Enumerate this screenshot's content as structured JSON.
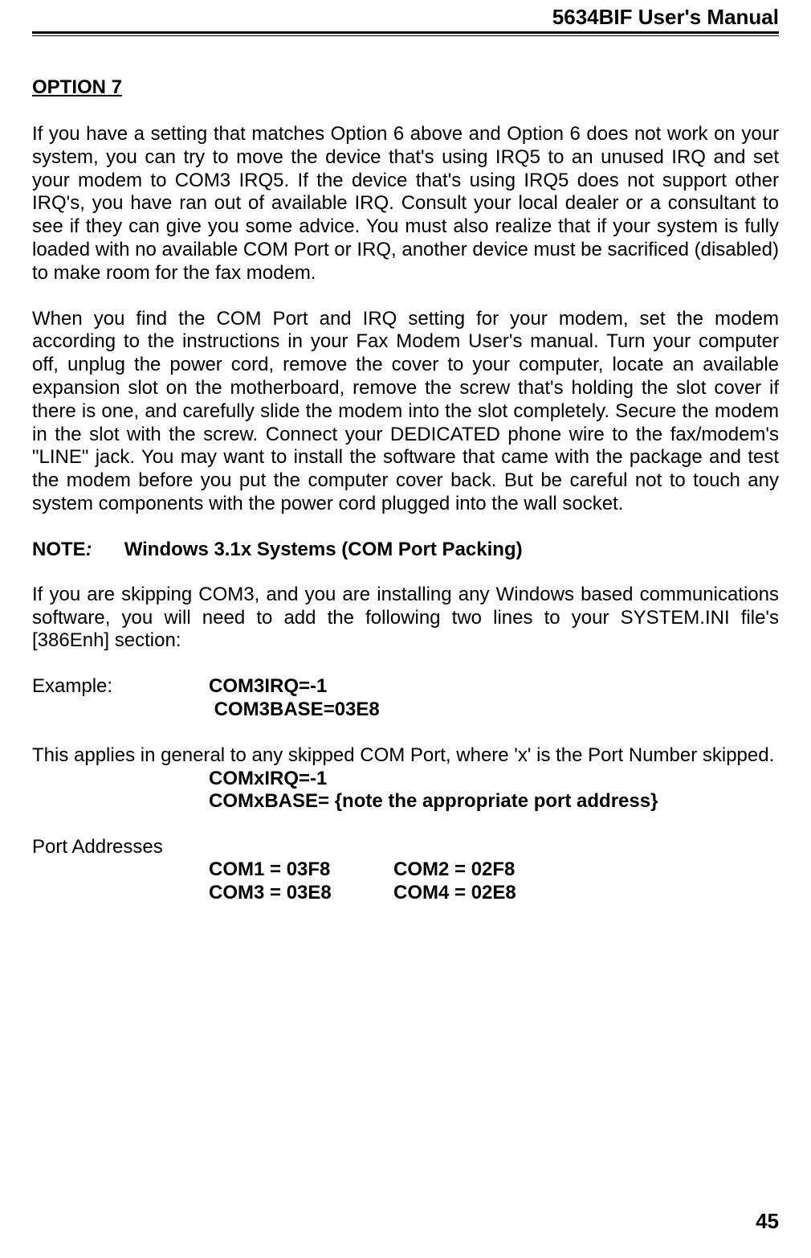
{
  "header": {
    "title": "5634BIF User's Manual"
  },
  "section": {
    "heading": "OPTION 7",
    "para1": "If you have a setting that matches Option 6 above and Option 6 does not work on your system, you can try to move the device that's using IRQ5 to an unused IRQ and set your modem to COM3 IRQ5.    If the device that's using IRQ5 does not support other IRQ's, you have ran out of available IRQ.    Consult your local dealer or a consultant to see if they can give you some advice.    You must also realize that if your system is fully loaded with no available COM Port or IRQ, another device must be sacrificed (disabled) to make room for the fax modem.",
    "para2": "When you find the COM Port and IRQ setting for your modem, set the modem according to the instructions in your Fax Modem User's manual.    Turn your computer off, unplug the power cord, remove the cover to your computer, locate an available expansion slot on the motherboard, remove the screw that's holding the slot cover if there is one, and carefully slide the modem into the slot completely.    Secure the modem in the slot with the screw.    Connect your DEDICATED phone wire to the fax/modem's \"LINE\" jack.    You may want to install the software that came with the package and test the modem before you put the computer cover back.    But be careful not to touch any system components with the power cord plugged into the wall socket."
  },
  "note": {
    "label": "NOTE",
    "colon": ":",
    "heading": "Windows 3.1x Systems (COM Port Packing)",
    "para": "If you are skipping COM3, and you are installing any Windows based communications software, you will need to add the following two lines to your SYSTEM.INI file's [386Enh] section:"
  },
  "example": {
    "label": "Example:",
    "line1": "COM3IRQ=-1",
    "line2": "COM3BASE=03E8"
  },
  "applies": {
    "text": "This applies in general to any skipped COM Port, where 'x' is the Port Number skipped.",
    "line1": "COMxIRQ=-1",
    "line2": "COMxBASE= {note the appropriate port address}"
  },
  "ports": {
    "label": "Port Addresses",
    "row1col1": "COM1 = 03F8",
    "row1col2": "COM2 = 02F8",
    "row2col1": "COM3 = 03E8",
    "row2col2": "COM4 = 02E8"
  },
  "pageNumber": "45"
}
